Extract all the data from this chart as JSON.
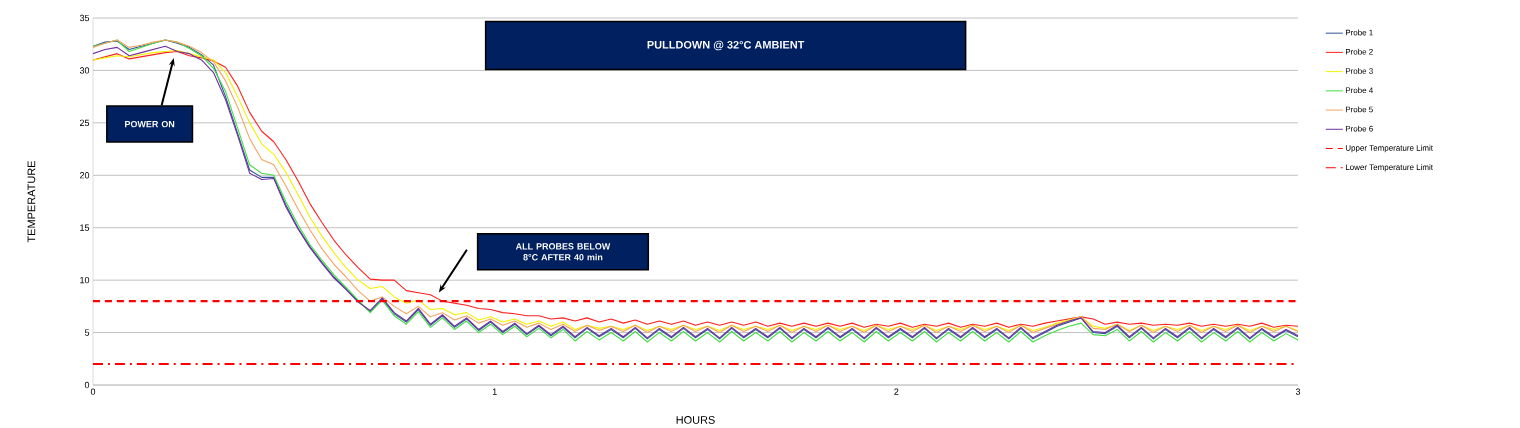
{
  "chart_data": {
    "type": "line",
    "title": "PULLDOWN @ 32°C AMBIENT",
    "xlabel": "HOURS",
    "ylabel": "TEMPERATURE",
    "x": [
      0,
      0.03,
      0.06,
      0.09,
      0.12,
      0.15,
      0.18,
      0.21,
      0.24,
      0.27,
      0.3,
      0.33,
      0.36,
      0.39,
      0.42,
      0.45,
      0.48,
      0.51,
      0.54,
      0.57,
      0.6,
      0.63,
      0.66,
      0.69,
      0.72,
      0.75,
      0.78,
      0.81,
      0.84,
      0.87,
      0.9,
      0.93,
      0.96,
      0.99,
      1.02,
      1.05,
      1.08,
      1.11,
      1.14,
      1.17,
      1.2,
      1.23,
      1.26,
      1.29,
      1.32,
      1.35,
      1.38,
      1.41,
      1.44,
      1.47,
      1.5,
      1.53,
      1.56,
      1.59,
      1.62,
      1.65,
      1.68,
      1.71,
      1.74,
      1.77,
      1.8,
      1.83,
      1.86,
      1.89,
      1.92,
      1.95,
      1.98,
      2.01,
      2.04,
      2.07,
      2.1,
      2.13,
      2.16,
      2.19,
      2.22,
      2.25,
      2.28,
      2.31,
      2.34,
      2.37,
      2.4,
      2.43,
      2.46,
      2.49,
      2.52,
      2.55,
      2.58,
      2.61,
      2.64,
      2.67,
      2.7,
      2.73,
      2.76,
      2.79,
      2.82,
      2.85,
      2.88,
      2.91,
      2.94,
      2.97,
      3
    ],
    "series": [
      {
        "name": "Probe 1",
        "color": "#2e5597",
        "values": [
          32.3,
          32.7,
          32.8,
          32.0,
          32.3,
          32.6,
          32.9,
          32.6,
          32.2,
          31.5,
          30.5,
          27.5,
          24.0,
          20.5,
          19.8,
          19.8,
          17.2,
          15.0,
          13.2,
          11.7,
          10.3,
          9.2,
          8.0,
          7.0,
          8.2,
          6.8,
          6.0,
          7.2,
          5.7,
          6.6,
          5.5,
          6.3,
          5.2,
          6.0,
          5.0,
          5.8,
          4.8,
          5.6,
          4.7,
          5.5,
          4.5,
          5.4,
          4.6,
          5.3,
          4.5,
          5.4,
          4.4,
          5.3,
          4.5,
          5.4,
          4.5,
          5.3,
          4.4,
          5.4,
          4.5,
          5.3,
          4.5,
          5.4,
          4.4,
          5.3,
          4.5,
          5.4,
          4.5,
          5.3,
          4.4,
          5.4,
          4.5,
          5.3,
          4.5,
          5.4,
          4.4,
          5.3,
          4.5,
          5.4,
          4.5,
          5.3,
          4.4,
          5.4,
          4.4,
          5.0,
          5.6,
          6.0,
          6.4,
          5.0,
          4.9,
          5.6,
          4.5,
          5.4,
          4.4,
          5.3,
          4.5,
          5.4,
          4.4,
          5.3,
          4.5,
          5.4,
          4.4,
          5.3,
          4.5,
          5.2,
          4.6
        ]
      },
      {
        "name": "Probe 2",
        "color": "#ff2020",
        "values": [
          31.0,
          31.3,
          31.6,
          31.1,
          31.3,
          31.5,
          31.7,
          31.8,
          31.4,
          31.2,
          30.9,
          30.3,
          28.5,
          26.0,
          24.2,
          23.2,
          21.5,
          19.5,
          17.3,
          15.5,
          13.8,
          12.4,
          11.2,
          10.1,
          10.0,
          10.0,
          9.0,
          8.8,
          8.6,
          8.0,
          7.8,
          7.6,
          7.3,
          7.2,
          6.9,
          6.8,
          6.6,
          6.6,
          6.3,
          6.4,
          6.1,
          6.4,
          6.0,
          6.3,
          5.9,
          6.2,
          5.8,
          6.1,
          5.8,
          6.1,
          5.7,
          6.0,
          5.7,
          6.0,
          5.7,
          6.0,
          5.6,
          5.9,
          5.6,
          5.9,
          5.6,
          5.9,
          5.6,
          5.9,
          5.5,
          5.8,
          5.6,
          5.9,
          5.5,
          5.8,
          5.6,
          5.9,
          5.5,
          5.8,
          5.6,
          5.9,
          5.5,
          5.8,
          5.6,
          5.9,
          6.1,
          6.3,
          6.5,
          6.3,
          5.8,
          6.0,
          5.8,
          5.9,
          5.7,
          5.8,
          5.7,
          5.9,
          5.6,
          5.8,
          5.6,
          5.8,
          5.6,
          5.9,
          5.5,
          5.7,
          5.6
        ]
      },
      {
        "name": "Probe 3",
        "color": "#f2f200",
        "values": [
          31.0,
          31.2,
          31.4,
          31.3,
          31.5,
          31.7,
          31.8,
          31.9,
          31.6,
          31.3,
          31.0,
          29.8,
          27.5,
          25.0,
          23.0,
          22.0,
          20.3,
          18.2,
          16.0,
          14.2,
          12.6,
          11.2,
          10.0,
          9.2,
          9.4,
          8.4,
          7.8,
          8.1,
          7.2,
          7.3,
          6.7,
          6.9,
          6.2,
          6.5,
          6.0,
          6.3,
          5.8,
          6.1,
          5.6,
          6.0,
          5.3,
          5.7,
          5.4,
          5.6,
          5.3,
          5.7,
          5.2,
          5.6,
          5.3,
          5.7,
          5.3,
          5.6,
          5.2,
          5.7,
          5.3,
          5.6,
          5.3,
          5.7,
          5.2,
          5.6,
          5.3,
          5.7,
          5.3,
          5.6,
          5.2,
          5.7,
          5.3,
          5.6,
          5.3,
          5.7,
          5.2,
          5.6,
          5.3,
          5.7,
          5.3,
          5.6,
          5.2,
          5.7,
          5.2,
          5.5,
          5.9,
          6.2,
          6.5,
          5.6,
          5.4,
          5.8,
          5.2,
          5.7,
          5.2,
          5.6,
          5.3,
          5.7,
          5.2,
          5.6,
          5.3,
          5.7,
          5.2,
          5.6,
          5.3,
          5.6,
          5.2
        ]
      },
      {
        "name": "Probe 4",
        "color": "#44dd44",
        "values": [
          32.3,
          32.6,
          32.9,
          31.8,
          32.2,
          32.6,
          32.9,
          32.7,
          32.1,
          31.4,
          30.2,
          28.0,
          24.5,
          21.0,
          20.2,
          20.0,
          17.5,
          15.3,
          13.4,
          11.9,
          10.5,
          9.3,
          8.1,
          6.9,
          8.1,
          6.6,
          5.8,
          7.0,
          5.5,
          6.4,
          5.3,
          6.1,
          5.0,
          5.8,
          4.8,
          5.6,
          4.6,
          5.4,
          4.5,
          5.3,
          4.2,
          5.1,
          4.3,
          5.0,
          4.2,
          5.1,
          4.1,
          5.0,
          4.2,
          5.1,
          4.2,
          5.0,
          4.1,
          5.1,
          4.2,
          5.0,
          4.2,
          5.1,
          4.1,
          5.0,
          4.2,
          5.1,
          4.2,
          5.0,
          4.1,
          5.1,
          4.2,
          5.0,
          4.2,
          5.1,
          4.1,
          5.0,
          4.2,
          5.1,
          4.2,
          5.0,
          4.1,
          5.1,
          4.1,
          4.7,
          5.2,
          5.6,
          5.9,
          4.8,
          4.7,
          5.3,
          4.2,
          5.1,
          4.1,
          5.0,
          4.2,
          5.1,
          4.1,
          5.0,
          4.2,
          5.1,
          4.1,
          5.0,
          4.2,
          4.9,
          4.3
        ]
      },
      {
        "name": "Probe 5",
        "color": "#f4a460",
        "values": [
          32.2,
          32.6,
          32.9,
          32.2,
          32.4,
          32.7,
          32.9,
          32.7,
          32.3,
          31.7,
          30.8,
          29.0,
          26.5,
          23.5,
          21.5,
          21.0,
          19.0,
          16.8,
          14.8,
          13.0,
          11.5,
          10.3,
          9.0,
          8.0,
          8.4,
          7.5,
          6.8,
          7.5,
          6.5,
          6.9,
          6.2,
          6.6,
          5.9,
          6.3,
          5.7,
          6.1,
          5.5,
          5.9,
          5.3,
          5.8,
          5.1,
          5.7,
          5.2,
          5.6,
          5.1,
          5.7,
          5.0,
          5.6,
          5.1,
          5.7,
          5.1,
          5.6,
          5.0,
          5.7,
          5.1,
          5.6,
          5.1,
          5.7,
          5.0,
          5.6,
          5.1,
          5.7,
          5.1,
          5.6,
          5.0,
          5.7,
          5.1,
          5.6,
          5.1,
          5.7,
          5.0,
          5.6,
          5.1,
          5.7,
          5.1,
          5.6,
          5.0,
          5.7,
          5.0,
          5.4,
          5.8,
          6.1,
          6.5,
          5.4,
          5.3,
          5.8,
          5.1,
          5.7,
          5.0,
          5.6,
          5.1,
          5.7,
          5.0,
          5.6,
          5.1,
          5.7,
          5.0,
          5.6,
          5.1,
          5.6,
          5.1
        ]
      },
      {
        "name": "Probe 6",
        "color": "#7030a0",
        "values": [
          31.6,
          32.0,
          32.2,
          31.4,
          31.7,
          32.0,
          32.3,
          31.8,
          31.6,
          31.0,
          29.8,
          27.2,
          23.8,
          20.2,
          19.6,
          19.7,
          17.0,
          14.9,
          13.1,
          11.6,
          10.2,
          9.1,
          7.9,
          7.1,
          8.3,
          6.9,
          6.1,
          7.3,
          5.8,
          6.7,
          5.6,
          6.4,
          5.3,
          6.1,
          5.1,
          5.9,
          4.9,
          5.7,
          4.8,
          5.6,
          4.6,
          5.5,
          4.7,
          5.4,
          4.6,
          5.5,
          4.5,
          5.4,
          4.6,
          5.5,
          4.6,
          5.4,
          4.5,
          5.5,
          4.6,
          5.4,
          4.6,
          5.5,
          4.5,
          5.4,
          4.6,
          5.5,
          4.6,
          5.4,
          4.5,
          5.5,
          4.6,
          5.4,
          4.6,
          5.5,
          4.5,
          5.4,
          4.6,
          5.5,
          4.6,
          5.4,
          4.5,
          5.5,
          4.5,
          5.1,
          5.7,
          6.1,
          6.4,
          5.1,
          5.0,
          5.7,
          4.6,
          5.5,
          4.5,
          5.4,
          4.6,
          5.5,
          4.5,
          5.4,
          4.6,
          5.5,
          4.5,
          5.4,
          4.6,
          5.3,
          4.7
        ]
      }
    ],
    "ref_lines": [
      {
        "axis": "y",
        "value": 8,
        "label": "Upper Temperature Limit",
        "color": "#ff0000",
        "line_style": "dashed"
      },
      {
        "axis": "y",
        "value": 2,
        "label": "Lower Temperature Limit",
        "color": "#ff0000",
        "line_style": "dashdot"
      }
    ],
    "annotations": [
      "POWER ON",
      "ALL PROBES BELOW 8°C AFTER 40 min"
    ],
    "xlim": [
      0,
      3
    ],
    "ylim": [
      0,
      35
    ],
    "xticks": [
      0,
      1,
      2,
      3
    ],
    "yticks": [
      0,
      5,
      10,
      15,
      20,
      25,
      30,
      35
    ],
    "grid": "y",
    "legend": "right",
    "marker": "none",
    "line_style": "solid"
  }
}
